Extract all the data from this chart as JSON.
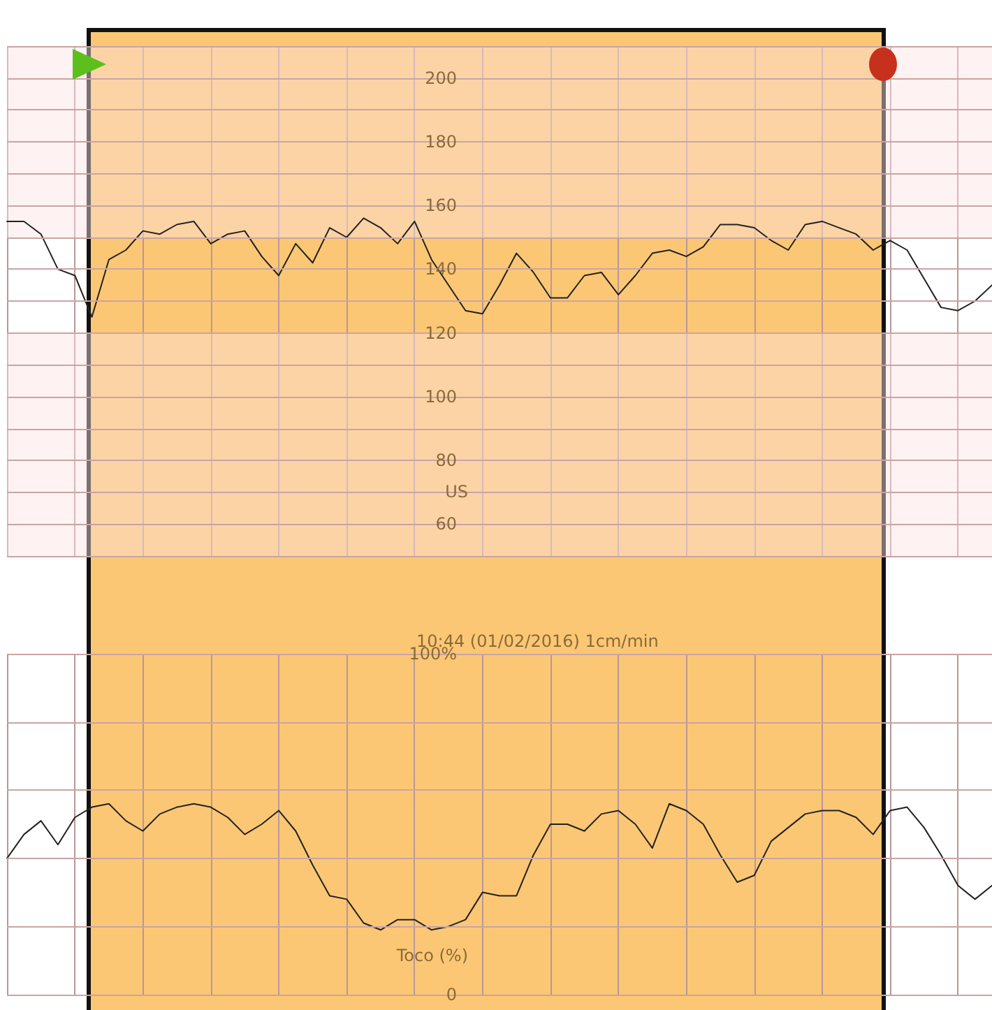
{
  "chart_data": [
    {
      "type": "line",
      "ylabel": "US",
      "categories": [
        null,
        null,
        null,
        null,
        null,
        null,
        null,
        null,
        null,
        null,
        null,
        null,
        null,
        null,
        null,
        null,
        null,
        null,
        null,
        null,
        null,
        null,
        null,
        null,
        null,
        null,
        null,
        null,
        null,
        null,
        null,
        null,
        null,
        null,
        null,
        null,
        null,
        null,
        null,
        null,
        null,
        null,
        null,
        null,
        null,
        null,
        null,
        null,
        null,
        null,
        null,
        null,
        null,
        null,
        null,
        null,
        null,
        null,
        null
      ],
      "series": [
        {
          "color": "#222222",
          "values": [
            155,
            155,
            151,
            140,
            138,
            125,
            143,
            146,
            152,
            151,
            154,
            155,
            148,
            151,
            152,
            144,
            138,
            148,
            142,
            153,
            150,
            156,
            153,
            148,
            155,
            143,
            135,
            127,
            126,
            135,
            145,
            139,
            131,
            131,
            138,
            139,
            132,
            138,
            145,
            146,
            144,
            147,
            154,
            154,
            153,
            149,
            146,
            154,
            155,
            153,
            151,
            146,
            149,
            146,
            137,
            128,
            127,
            130,
            135
          ]
        }
      ],
      "ylim": [
        50,
        210
      ],
      "yticks": [
        {
          "value": 50,
          "label": null
        },
        60,
        {
          "value": 70,
          "label": null
        },
        80,
        {
          "value": 90,
          "label": null
        },
        100,
        {
          "value": 110,
          "label": null
        },
        120,
        {
          "value": 130,
          "label": null
        },
        140,
        {
          "value": 150,
          "label": null
        },
        160,
        {
          "value": 170,
          "label": null
        },
        180,
        {
          "value": 190,
          "label": null
        },
        200,
        {
          "value": 210,
          "label": null
        }
      ],
      "bands": [
        {
          "axis": "y",
          "from": 150,
          "to": 210,
          "color": "#fde3e3"
        },
        {
          "axis": "y",
          "from": 50,
          "to": 120,
          "color": "#fde3e3"
        }
      ],
      "grid": true,
      "marker": "none",
      "line_style": "solid",
      "tick_labels": "y"
    },
    {
      "type": "line",
      "title": "10:44 (01/02/2016) 1cm/min",
      "ylabel": "Toco (%)",
      "categories": [
        null,
        null,
        null,
        null,
        null,
        null,
        null,
        null,
        null,
        null,
        null,
        null,
        null,
        null,
        null,
        null,
        null,
        null,
        null,
        null,
        null,
        null,
        null,
        null,
        null,
        null,
        null,
        null,
        null,
        null,
        null,
        null,
        null,
        null,
        null,
        null,
        null,
        null,
        null,
        null,
        null,
        null,
        null,
        null,
        null,
        null,
        null,
        null,
        null,
        null,
        null,
        null,
        null,
        null,
        null,
        null,
        null,
        null,
        null
      ],
      "series": [
        {
          "color": "#222222",
          "values": [
            40,
            47,
            51,
            44,
            52,
            55,
            56,
            51,
            48,
            53,
            55,
            56,
            55,
            52,
            47,
            50,
            54,
            48,
            38,
            29,
            28,
            21,
            19,
            22,
            22,
            19,
            20,
            22,
            30,
            29,
            29,
            41,
            50,
            50,
            48,
            53,
            54,
            50,
            43,
            56,
            54,
            50,
            41,
            33,
            35,
            45,
            49,
            53,
            54,
            54,
            52,
            47,
            54,
            55,
            49,
            41,
            32,
            28,
            32
          ]
        }
      ],
      "ylim": [
        0,
        100
      ],
      "yticks": [
        0,
        {
          "value": 20,
          "label": null
        },
        {
          "value": 40,
          "label": null
        },
        {
          "value": 60,
          "label": null
        },
        {
          "value": 80,
          "label": null
        },
        {
          "value": 100,
          "label": "100%"
        }
      ],
      "grid": true,
      "marker": "none",
      "line_style": "solid",
      "tick_labels": "y"
    }
  ]
}
